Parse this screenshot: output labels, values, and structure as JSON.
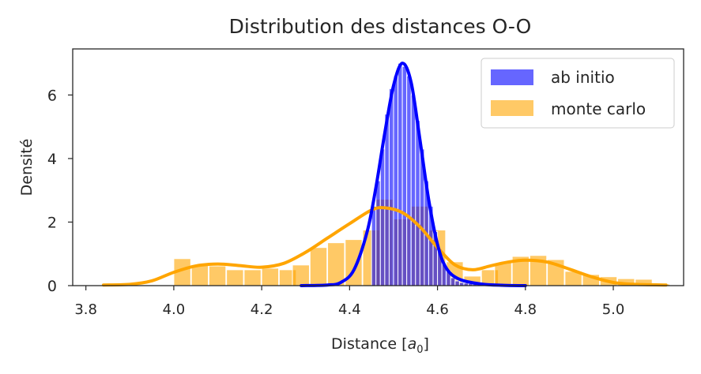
{
  "chart_data": {
    "type": "bar",
    "title": "Distribution des distances O-O",
    "xlabel": "Distance",
    "xlabel_unit": "a",
    "xlabel_unit_sub": "0",
    "ylabel": "Densité",
    "xlim": [
      3.77,
      5.16
    ],
    "ylim": [
      0,
      7.45
    ],
    "xticks": [
      3.8,
      4.0,
      4.2,
      4.4,
      4.6,
      4.8,
      5.0
    ],
    "xtick_labels": [
      "3.8",
      "4.0",
      "4.2",
      "4.4",
      "4.6",
      "4.8",
      "5.0"
    ],
    "yticks": [
      0,
      2,
      4,
      6
    ],
    "ytick_labels": [
      "0",
      "2",
      "4",
      "6"
    ],
    "grid": false,
    "legend_position": "top-right",
    "series": [
      {
        "name": "monte carlo",
        "kind": "histogram+kde",
        "color": "#FFA500",
        "bin_width": 0.0385,
        "bins": [
          [
            4.0,
            0.85
          ],
          [
            4.04,
            0.65
          ],
          [
            4.08,
            0.62
          ],
          [
            4.12,
            0.5
          ],
          [
            4.16,
            0.5
          ],
          [
            4.2,
            0.55
          ],
          [
            4.24,
            0.5
          ],
          [
            4.27,
            0.65
          ],
          [
            4.31,
            1.2
          ],
          [
            4.35,
            1.35
          ],
          [
            4.39,
            1.45
          ],
          [
            4.43,
            1.75
          ],
          [
            4.46,
            2.72
          ],
          [
            4.5,
            2.1
          ],
          [
            4.54,
            2.5
          ],
          [
            4.58,
            1.75
          ],
          [
            4.62,
            0.75
          ],
          [
            4.66,
            0.3
          ],
          [
            4.7,
            0.5
          ],
          [
            4.73,
            0.72
          ],
          [
            4.77,
            0.92
          ],
          [
            4.81,
            0.95
          ],
          [
            4.85,
            0.82
          ],
          [
            4.89,
            0.45
          ],
          [
            4.93,
            0.35
          ],
          [
            4.97,
            0.28
          ],
          [
            5.01,
            0.22
          ],
          [
            5.05,
            0.2
          ],
          [
            5.09,
            0.05
          ]
        ],
        "kde": [
          [
            3.84,
            0.02
          ],
          [
            3.9,
            0.04
          ],
          [
            3.95,
            0.15
          ],
          [
            4.0,
            0.42
          ],
          [
            4.05,
            0.62
          ],
          [
            4.1,
            0.68
          ],
          [
            4.15,
            0.63
          ],
          [
            4.2,
            0.58
          ],
          [
            4.25,
            0.7
          ],
          [
            4.3,
            1.05
          ],
          [
            4.35,
            1.5
          ],
          [
            4.4,
            1.95
          ],
          [
            4.45,
            2.38
          ],
          [
            4.48,
            2.45
          ],
          [
            4.52,
            2.3
          ],
          [
            4.56,
            1.85
          ],
          [
            4.6,
            1.2
          ],
          [
            4.64,
            0.65
          ],
          [
            4.68,
            0.5
          ],
          [
            4.72,
            0.62
          ],
          [
            4.76,
            0.74
          ],
          [
            4.8,
            0.8
          ],
          [
            4.85,
            0.74
          ],
          [
            4.9,
            0.52
          ],
          [
            4.95,
            0.28
          ],
          [
            5.0,
            0.1
          ],
          [
            5.05,
            0.04
          ],
          [
            5.12,
            0.02
          ]
        ]
      },
      {
        "name": "ab initio",
        "kind": "histogram+kde",
        "color": "#0000FF",
        "bin_width": 0.0101,
        "bins": [
          [
            4.45,
            2.5
          ],
          [
            4.46,
            3.3
          ],
          [
            4.47,
            4.3
          ],
          [
            4.48,
            5.4
          ],
          [
            4.49,
            6.2
          ],
          [
            4.5,
            6.6
          ],
          [
            4.51,
            7.0
          ],
          [
            4.52,
            6.9
          ],
          [
            4.53,
            6.6
          ],
          [
            4.54,
            6.0
          ],
          [
            4.55,
            5.2
          ],
          [
            4.56,
            4.3
          ],
          [
            4.57,
            3.3
          ],
          [
            4.58,
            2.5
          ],
          [
            4.59,
            1.7
          ],
          [
            4.6,
            1.1
          ],
          [
            4.61,
            0.7
          ],
          [
            4.62,
            0.45
          ],
          [
            4.63,
            0.25
          ],
          [
            4.64,
            0.15
          ],
          [
            4.65,
            0.1
          ],
          [
            4.66,
            0.08
          ],
          [
            4.67,
            0.06
          ],
          [
            4.68,
            0.05
          ],
          [
            4.69,
            0.04
          ],
          [
            4.7,
            0.03
          ],
          [
            4.71,
            0.03
          ],
          [
            4.72,
            0.02
          ],
          [
            4.73,
            0.02
          ],
          [
            4.74,
            0.02
          ],
          [
            4.75,
            0.01
          ],
          [
            4.76,
            0.01
          ],
          [
            4.77,
            0.01
          ],
          [
            4.78,
            0.01
          ],
          [
            4.79,
            0.01
          ]
        ],
        "kde": [
          [
            4.29,
            0.0
          ],
          [
            4.35,
            0.02
          ],
          [
            4.38,
            0.1
          ],
          [
            4.41,
            0.5
          ],
          [
            4.44,
            1.7
          ],
          [
            4.46,
            3.1
          ],
          [
            4.48,
            4.8
          ],
          [
            4.5,
            6.3
          ],
          [
            4.52,
            7.0
          ],
          [
            4.54,
            6.4
          ],
          [
            4.56,
            4.6
          ],
          [
            4.58,
            2.7
          ],
          [
            4.6,
            1.3
          ],
          [
            4.62,
            0.55
          ],
          [
            4.65,
            0.2
          ],
          [
            4.7,
            0.05
          ],
          [
            4.75,
            0.01
          ],
          [
            4.8,
            0.0
          ]
        ]
      }
    ]
  }
}
